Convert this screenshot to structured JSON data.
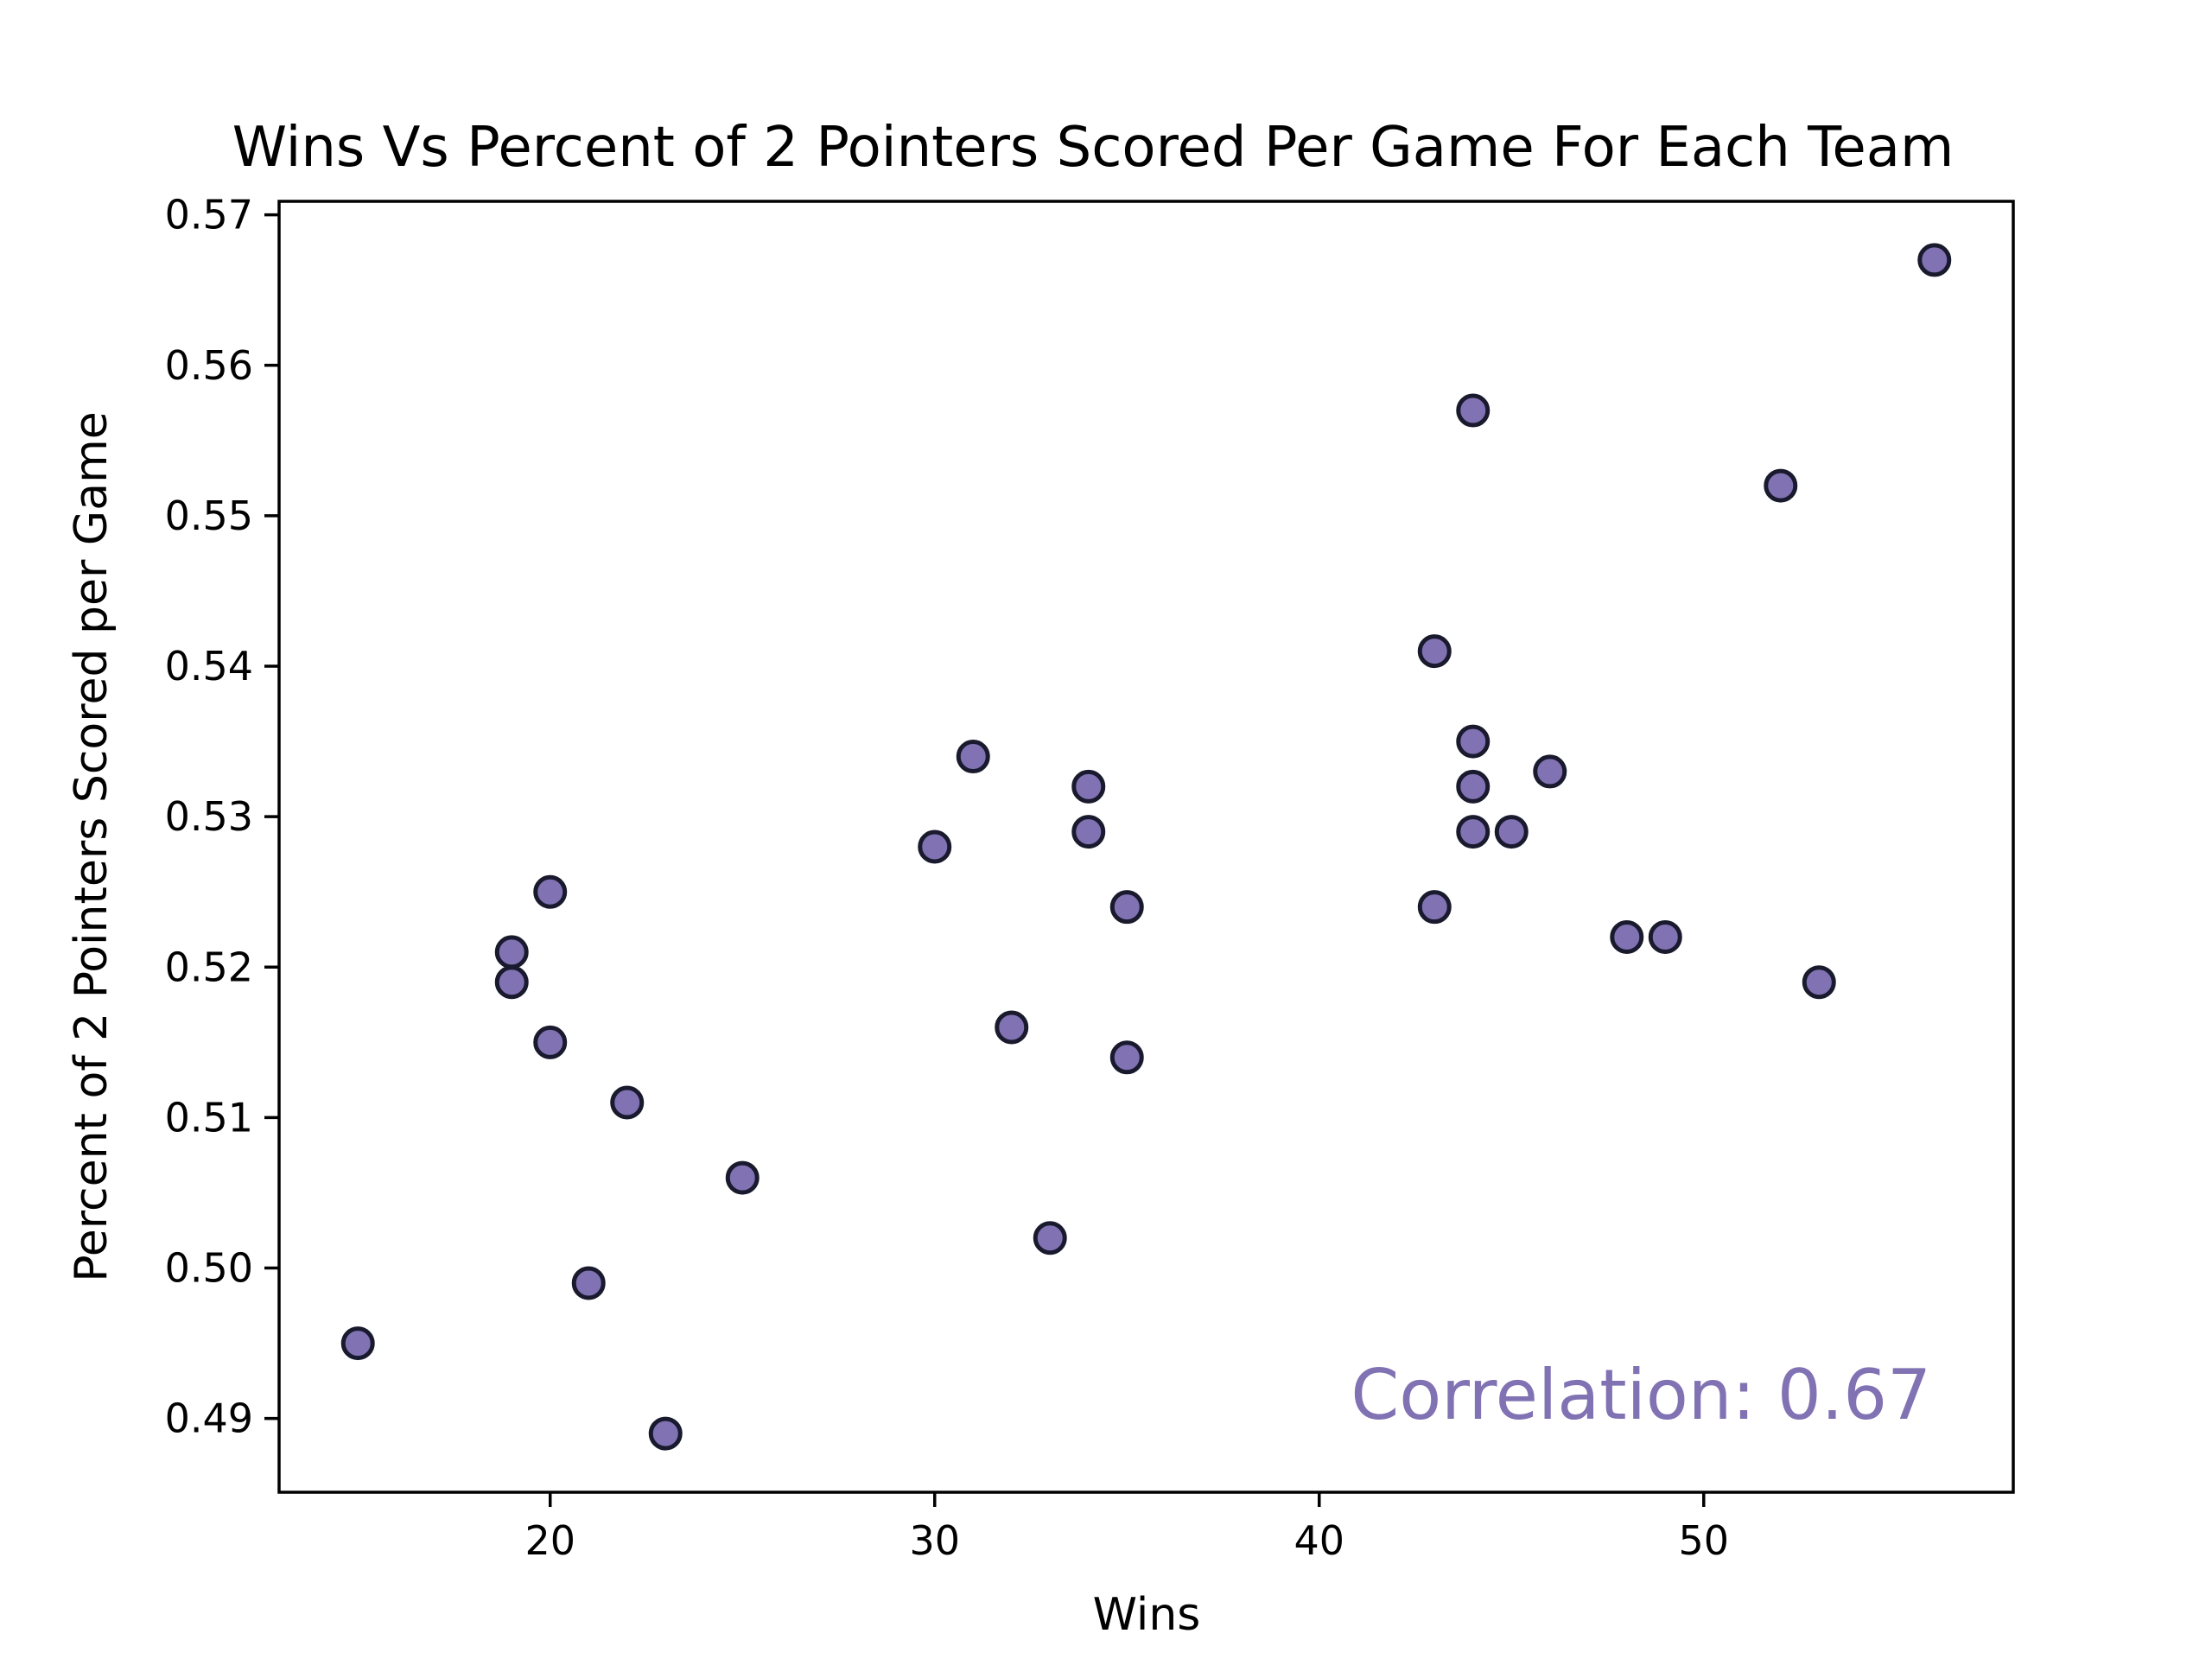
{
  "chart_data": {
    "type": "scatter",
    "title": "Wins Vs Percent of 2 Pointers Scored Per Game For Each Team",
    "xlabel": "Wins",
    "ylabel": "Percent of 2 Pointers Scored per Game",
    "xlim": [
      12.95,
      58.05
    ],
    "ylim": [
      0.4851,
      0.5709
    ],
    "xticks": [
      20,
      30,
      40,
      50
    ],
    "xtick_labels": [
      "20",
      "30",
      "40",
      "50"
    ],
    "yticks": [
      0.49,
      0.5,
      0.51,
      0.52,
      0.53,
      0.54,
      0.55,
      0.56,
      0.57
    ],
    "ytick_labels": [
      "0.49",
      "0.50",
      "0.51",
      "0.52",
      "0.53",
      "0.54",
      "0.55",
      "0.56",
      "0.57"
    ],
    "grid": false,
    "point_color": "#8172b3",
    "edge_color": "#1a1a2e",
    "annotation": {
      "text": "Correlation: 0.67",
      "color": "#8172b3"
    },
    "points": [
      {
        "x": 15,
        "y": 0.495
      },
      {
        "x": 19,
        "y": 0.521
      },
      {
        "x": 19,
        "y": 0.519
      },
      {
        "x": 20,
        "y": 0.525
      },
      {
        "x": 20,
        "y": 0.515
      },
      {
        "x": 21,
        "y": 0.499
      },
      {
        "x": 22,
        "y": 0.511
      },
      {
        "x": 23,
        "y": 0.489
      },
      {
        "x": 25,
        "y": 0.506
      },
      {
        "x": 30,
        "y": 0.528
      },
      {
        "x": 31,
        "y": 0.534
      },
      {
        "x": 32,
        "y": 0.516
      },
      {
        "x": 33,
        "y": 0.502
      },
      {
        "x": 34,
        "y": 0.532
      },
      {
        "x": 34,
        "y": 0.529
      },
      {
        "x": 35,
        "y": 0.524
      },
      {
        "x": 35,
        "y": 0.514
      },
      {
        "x": 43,
        "y": 0.541
      },
      {
        "x": 43,
        "y": 0.524
      },
      {
        "x": 44,
        "y": 0.557
      },
      {
        "x": 44,
        "y": 0.535
      },
      {
        "x": 44,
        "y": 0.532
      },
      {
        "x": 44,
        "y": 0.529
      },
      {
        "x": 45,
        "y": 0.529
      },
      {
        "x": 46,
        "y": 0.533
      },
      {
        "x": 48,
        "y": 0.522
      },
      {
        "x": 49,
        "y": 0.522
      },
      {
        "x": 52,
        "y": 0.552
      },
      {
        "x": 53,
        "y": 0.519
      },
      {
        "x": 56,
        "y": 0.567
      }
    ]
  }
}
